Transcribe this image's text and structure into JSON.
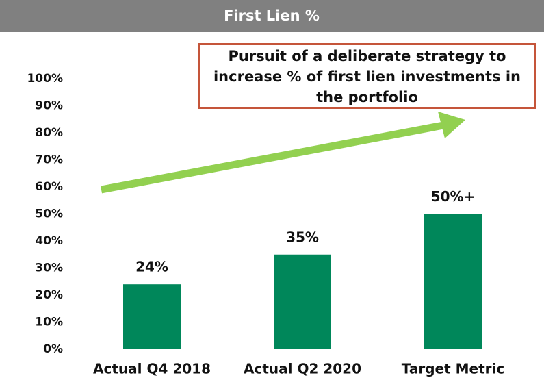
{
  "chart_data": {
    "type": "bar",
    "title": "First Lien %",
    "annotation": "Pursuit of a deliberate strategy to increase % of first lien investments in the portfolio",
    "categories": [
      "Actual Q4 2018",
      "Actual Q2 2020",
      "Target Metric"
    ],
    "values": [
      24,
      35,
      50
    ],
    "value_labels": [
      "24%",
      "35%",
      "50%+"
    ],
    "color": "#00875a",
    "ylim": [
      0,
      100
    ],
    "yticks": [
      {
        "value": 0,
        "label": "0%"
      },
      {
        "value": 10,
        "label": "10%"
      },
      {
        "value": 20,
        "label": "20%"
      },
      {
        "value": 30,
        "label": "30%"
      },
      {
        "value": 40,
        "label": "40%"
      },
      {
        "value": 50,
        "label": "50%"
      },
      {
        "value": 60,
        "label": "60%"
      },
      {
        "value": 70,
        "label": "70%"
      },
      {
        "value": 80,
        "label": "80%"
      },
      {
        "value": 90,
        "label": "90%"
      },
      {
        "value": 100,
        "label": "100%"
      }
    ],
    "grid": false
  }
}
